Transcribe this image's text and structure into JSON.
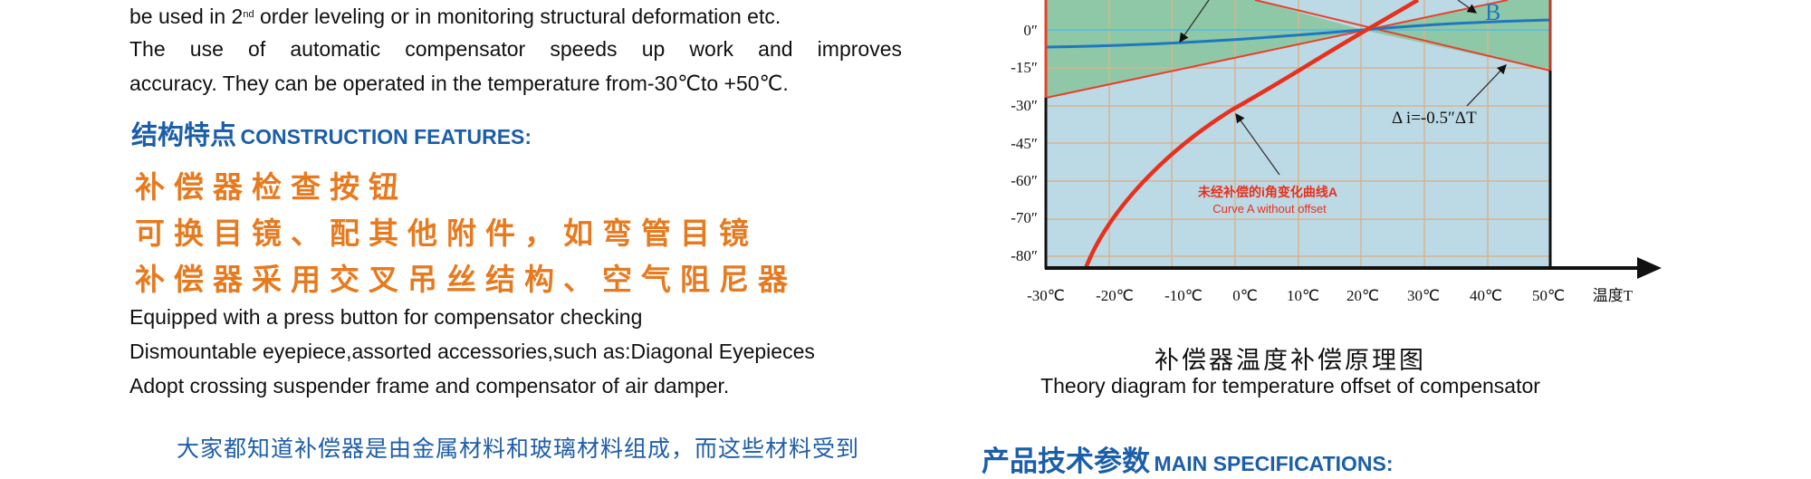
{
  "intro": {
    "line1_a": "be used in 2",
    "line1_sup": "nd",
    "line1_b": " order leveling or in monitoring structural deformation etc.",
    "line2": "The use of automatic compensator speeds up work and improves",
    "line3": "accuracy. They can be operated in the temperature from-30℃to +50℃."
  },
  "construction": {
    "heading_cn": "结构特点",
    "heading_en": "CONSTRUCTION FEATURES:",
    "features_cn": [
      "补偿器检查按钮",
      "可换目镜、配其他附件，如弯管目镜",
      "补偿器采用交叉吊丝结构、空气阻尼器"
    ],
    "features_en": [
      "Equipped with a press button for compensator checking",
      "Dismountable eyepiece,assorted accessories,such as:Diagonal Eyepieces",
      "Adopt crossing suspender frame and compensator of air damper."
    ]
  },
  "bottom_paragraph": "大家都知道补偿器是由金属材料和玻璃材料组成，而这些材料受到",
  "diagram": {
    "y_ticks": [
      "0″",
      "-15″",
      "-30″",
      "-45″",
      "-60″",
      "-70″",
      "-80″"
    ],
    "x_ticks": [
      "-30℃",
      "-20℃",
      "-10℃",
      "0℃",
      "10℃",
      "20℃",
      "30℃",
      "40℃",
      "50℃"
    ],
    "x_axis_label": "温度T",
    "curve_b_label": "B",
    "slope_label": "Δ i=-0.5″ΔT",
    "curve_a_label_cn": "未经补偿的i角变化曲线A",
    "curve_a_label_en": "Curve A without offset",
    "caption_cn": "补偿器温度补偿原理图",
    "caption_en": "Theory diagram for temperature offset of compensator",
    "colors": {
      "plot_bg": "#bcd9e6",
      "band": "#8fc8a6",
      "grid": "#d8b48e",
      "curve_a": "#e8301c",
      "curve_b": "#1e78c0"
    }
  },
  "specs": {
    "heading_cn": "产品技术参数",
    "heading_en": "MAIN SPECIFICATIONS:"
  }
}
